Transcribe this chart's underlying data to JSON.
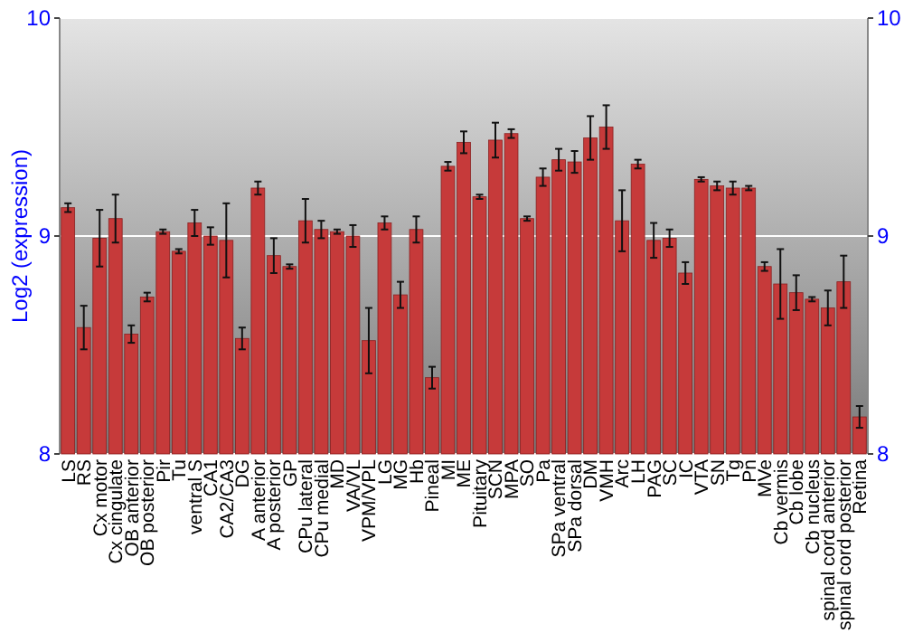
{
  "chart_data": {
    "type": "bar",
    "ylabel": "Log2 (expression)",
    "categories": [
      "LS",
      "RS",
      "Cx motor",
      "Cx cingulate",
      "OB anterior",
      "OB posterior",
      "Pir",
      "Tu",
      "ventral S",
      "CA1",
      "CA2/CA3",
      "DG",
      "A anterior",
      "A posterior",
      "GP",
      "CPu lateral",
      "CPu medial",
      "MD",
      "VA/VL",
      "VPM/VPL",
      "LG",
      "MG",
      "Hb",
      "Pineal",
      "MI",
      "ME",
      "Pituitary",
      "SCN",
      "MPA",
      "SO",
      "Pa",
      "SPa ventral",
      "SPa dorsal",
      "DM",
      "VMH",
      "Arc",
      "LH",
      "PAG",
      "SC",
      "IC",
      "VTA",
      "SN",
      "Tg",
      "Pn",
      "MVe",
      "Cb vermis",
      "Cb lobe",
      "Cb nucleus",
      "spinal cord anterior",
      "spinal cord posterior",
      "Retina"
    ],
    "values": [
      9.13,
      8.58,
      8.99,
      9.08,
      8.55,
      8.72,
      9.02,
      8.93,
      9.06,
      9.0,
      8.98,
      8.53,
      9.22,
      8.91,
      8.86,
      9.07,
      9.03,
      9.02,
      9.0,
      8.52,
      9.06,
      8.73,
      9.03,
      8.35,
      9.32,
      9.43,
      9.18,
      9.44,
      9.47,
      9.08,
      9.27,
      9.35,
      9.34,
      9.45,
      9.5,
      9.07,
      9.33,
      8.98,
      8.99,
      8.83,
      9.26,
      9.23,
      9.22,
      9.22,
      8.86,
      8.78,
      8.74,
      8.71,
      8.67,
      8.79,
      8.17
    ],
    "errors": [
      0.02,
      0.1,
      0.13,
      0.11,
      0.04,
      0.02,
      0.01,
      0.01,
      0.06,
      0.04,
      0.17,
      0.05,
      0.03,
      0.08,
      0.01,
      0.1,
      0.04,
      0.01,
      0.05,
      0.15,
      0.03,
      0.06,
      0.06,
      0.05,
      0.02,
      0.05,
      0.01,
      0.08,
      0.02,
      0.01,
      0.04,
      0.05,
      0.05,
      0.1,
      0.1,
      0.14,
      0.02,
      0.08,
      0.04,
      0.05,
      0.01,
      0.02,
      0.03,
      0.01,
      0.02,
      0.16,
      0.08,
      0.01,
      0.08,
      0.12,
      0.05
    ],
    "color": "#c63a3a",
    "ylim": [
      8,
      10
    ],
    "yticks": [
      8,
      9,
      10
    ],
    "y2lim": [
      8,
      10
    ],
    "y2ticks": [
      8,
      9,
      10
    ],
    "grid": "y"
  }
}
